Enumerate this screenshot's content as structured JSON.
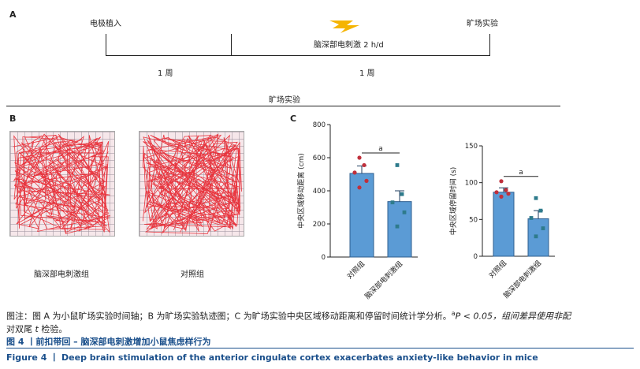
{
  "panel_a": {
    "letter": "A",
    "event_left": "电极植入",
    "event_mid": "脑深部电刺激 2 h/d",
    "event_right": "旷场实验",
    "interval_1": "1 周",
    "interval_2": "1 周",
    "section_title": "旷场实验",
    "colors": {
      "bolt": "#f5b400"
    }
  },
  "panel_b": {
    "letter": "B",
    "label_left": "脑深部电刺激组",
    "label_right": "对照组",
    "colors": {
      "path": "#e8242e",
      "bg": "#f6e7ea"
    }
  },
  "panel_c": {
    "letter": "C"
  },
  "chart_data": [
    {
      "type": "bar",
      "ylabel": "中央区域移动距离 (cm)",
      "categories": [
        "对照组",
        "脑深部电刺激组"
      ],
      "values": [
        505,
        335
      ],
      "errors": [
        45,
        65
      ],
      "ylim": [
        0,
        800
      ],
      "yticks": [
        0,
        200,
        400,
        600,
        800
      ],
      "points": [
        [
          600,
          555,
          510,
          460,
          420
        ],
        [
          555,
          380,
          330,
          270,
          185
        ]
      ],
      "significance": "a",
      "colors": {
        "bar": "#5b9bd5",
        "bar_edge": "#2f5f8f",
        "pt_ctrl": "#c0303c",
        "pt_dbs": "#2e7b8c"
      }
    },
    {
      "type": "bar",
      "ylabel": "中央区域停留时间 (s)",
      "categories": [
        "对照组",
        "脑深部电刺激组"
      ],
      "values": [
        87,
        51
      ],
      "errors": [
        6,
        11
      ],
      "ylim": [
        0,
        150
      ],
      "yticks": [
        0,
        50,
        100,
        150
      ],
      "points": [
        [
          102,
          90,
          87,
          85,
          81
        ],
        [
          79,
          62,
          52,
          38,
          27
        ]
      ],
      "significance": "a",
      "colors": {
        "bar": "#5b9bd5",
        "bar_edge": "#2f5f8f",
        "pt_ctrl": "#c0303c",
        "pt_dbs": "#2e7b8c"
      }
    }
  ],
  "caption": {
    "note_line1": "图注：图 A 为小鼠旷场实验时间轴；B 为旷场实验轨迹图；C 为旷场实验中央区域移动距离和停留时间统计学分析。",
    "note_sup": "a",
    "note_line1_tail": "P < 0.05，组间差异使用非配",
    "note_line2_pre": "对双尾 ",
    "note_line2_t": "t",
    "note_line2_post": " 检验。",
    "figure_cn": "图 4 丨前扣带回 – 脑深部电刺激增加小鼠焦虑样行为",
    "figure_en": "Figure 4 丨 Deep brain stimulation of the anterior cingulate cortex exacerbates anxiety-like behavior in mice"
  }
}
